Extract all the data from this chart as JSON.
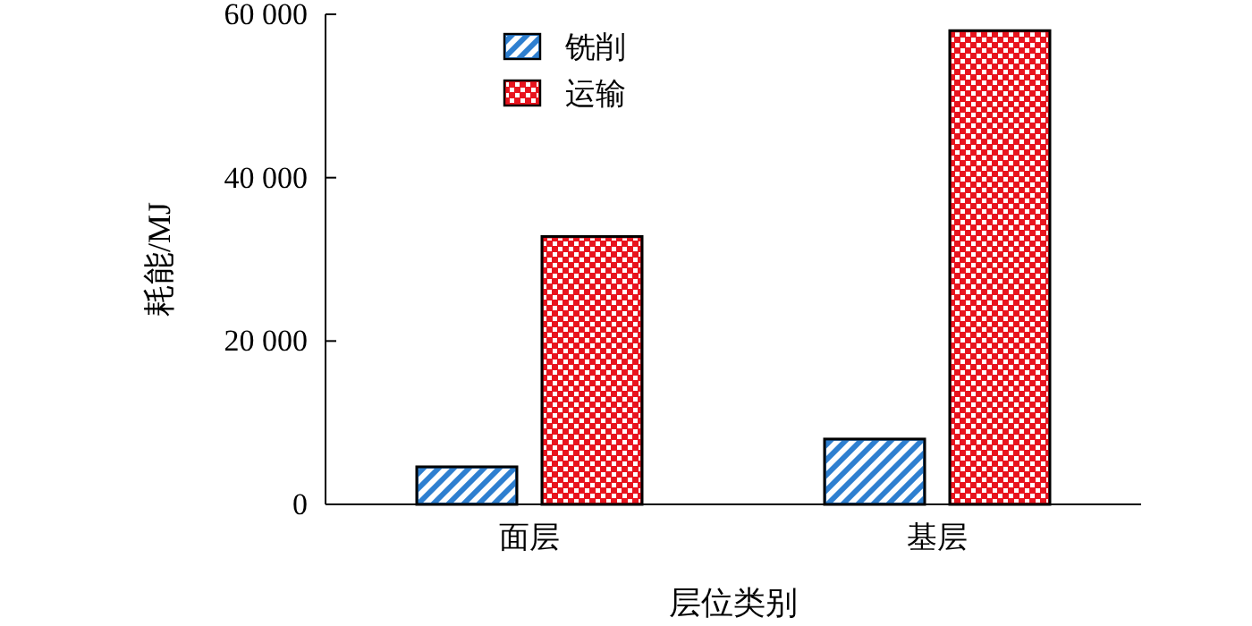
{
  "chart_data": {
    "type": "bar",
    "xlabel": "层位类别",
    "ylabel": "耗能/MJ",
    "categories": [
      "面层",
      "基层"
    ],
    "series": [
      {
        "name": "铣削",
        "color": "#2e7fd0",
        "values": [
          4600,
          8000
        ]
      },
      {
        "name": "运输",
        "color": "#e8141e",
        "values": [
          32800,
          58000
        ]
      }
    ],
    "ylim": [
      0,
      60000
    ],
    "yticks": [
      {
        "value": 0,
        "label": "0"
      },
      {
        "value": 20000,
        "label": "20 000"
      },
      {
        "value": 40000,
        "label": "40 000"
      },
      {
        "value": 60000,
        "label": "60 000"
      }
    ],
    "grid": false,
    "legend": "top left"
  }
}
